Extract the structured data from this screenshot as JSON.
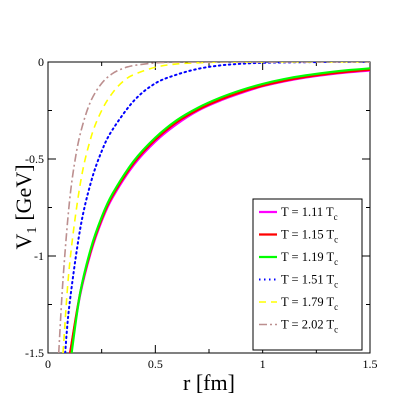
{
  "chart_data": {
    "type": "line",
    "title": "",
    "xlabel": "r [fm]",
    "ylabel": "V",
    "ylabel_sub": "1",
    "ylabel_units": "[GeV]",
    "xlim": [
      0,
      1.5
    ],
    "ylim": [
      -1.5,
      0
    ],
    "xticks": [
      0,
      0.5,
      1,
      1.5
    ],
    "xtick_labels": [
      "0",
      "0.5",
      "1",
      "1.5"
    ],
    "yticks": [
      0,
      -0.5,
      -1,
      -1.5
    ],
    "ytick_labels": [
      "0",
      "-0.5",
      "-1",
      "-1.5"
    ],
    "grid": false,
    "legend_position": "bottom-right",
    "series": [
      {
        "name": "T = 1.11 T",
        "name_sub": "c",
        "color": "#ff00ff",
        "dash": "solid",
        "x": [
          0.1,
          0.15,
          0.2,
          0.25,
          0.3,
          0.4,
          0.5,
          0.6,
          0.7,
          0.8,
          0.9,
          1.0,
          1.1,
          1.2,
          1.3,
          1.4,
          1.5
        ],
        "y": [
          -1.52,
          -1.2,
          -0.98,
          -0.82,
          -0.7,
          -0.53,
          -0.41,
          -0.32,
          -0.25,
          -0.2,
          -0.16,
          -0.125,
          -0.1,
          -0.08,
          -0.065,
          -0.053,
          -0.044
        ]
      },
      {
        "name": "T = 1.15 T",
        "name_sub": "c",
        "color": "#ff0000",
        "dash": "solid",
        "x": [
          0.1,
          0.15,
          0.2,
          0.25,
          0.3,
          0.4,
          0.5,
          0.6,
          0.7,
          0.8,
          0.9,
          1.0,
          1.1,
          1.2,
          1.3,
          1.4,
          1.5
        ],
        "y": [
          -1.52,
          -1.19,
          -0.97,
          -0.81,
          -0.69,
          -0.52,
          -0.4,
          -0.31,
          -0.245,
          -0.195,
          -0.155,
          -0.122,
          -0.097,
          -0.077,
          -0.062,
          -0.05,
          -0.04
        ]
      },
      {
        "name": "T = 1.19 T",
        "name_sub": "c",
        "color": "#00ff00",
        "dash": "solid",
        "x": [
          0.11,
          0.15,
          0.2,
          0.25,
          0.3,
          0.4,
          0.5,
          0.6,
          0.7,
          0.8,
          0.9,
          1.0,
          1.1,
          1.2,
          1.3,
          1.4,
          1.5
        ],
        "y": [
          -1.5,
          -1.19,
          -0.96,
          -0.8,
          -0.68,
          -0.51,
          -0.39,
          -0.3,
          -0.235,
          -0.185,
          -0.145,
          -0.113,
          -0.088,
          -0.069,
          -0.054,
          -0.042,
          -0.033
        ]
      },
      {
        "name": "T = 1.51 T",
        "name_sub": "c",
        "color": "#0000ff",
        "dash": "dotted",
        "x": [
          0.08,
          0.1,
          0.15,
          0.2,
          0.25,
          0.3,
          0.4,
          0.5,
          0.6,
          0.7,
          0.8,
          0.9,
          1.0,
          1.1,
          1.2,
          1.3,
          1.5
        ],
        "y": [
          -1.5,
          -1.25,
          -0.86,
          -0.62,
          -0.46,
          -0.35,
          -0.2,
          -0.11,
          -0.065,
          -0.035,
          -0.018,
          -0.009,
          -0.004,
          -0.002,
          -0.001,
          0,
          0
        ]
      },
      {
        "name": "T = 1.79 T",
        "name_sub": "c",
        "color": "#ffff00",
        "dash": "dashed",
        "x": [
          0.07,
          0.1,
          0.15,
          0.2,
          0.25,
          0.3,
          0.35,
          0.4,
          0.5,
          0.6,
          0.7,
          0.8,
          1.0,
          1.2,
          1.5
        ],
        "y": [
          -1.5,
          -1.05,
          -0.63,
          -0.39,
          -0.25,
          -0.16,
          -0.1,
          -0.065,
          -0.027,
          -0.01,
          -0.004,
          -0.001,
          0,
          0,
          0
        ]
      },
      {
        "name": "T = 2.02 T",
        "name_sub": "c",
        "color": "#bc8f8f",
        "dash": "dashdot",
        "x": [
          0.05,
          0.07,
          0.1,
          0.13,
          0.16,
          0.2,
          0.25,
          0.3,
          0.35,
          0.4,
          0.5,
          0.6,
          0.8,
          1.0,
          1.5
        ],
        "y": [
          -1.5,
          -1.12,
          -0.72,
          -0.48,
          -0.33,
          -0.2,
          -0.11,
          -0.06,
          -0.033,
          -0.018,
          -0.005,
          -0.001,
          0,
          0,
          0
        ]
      }
    ]
  }
}
